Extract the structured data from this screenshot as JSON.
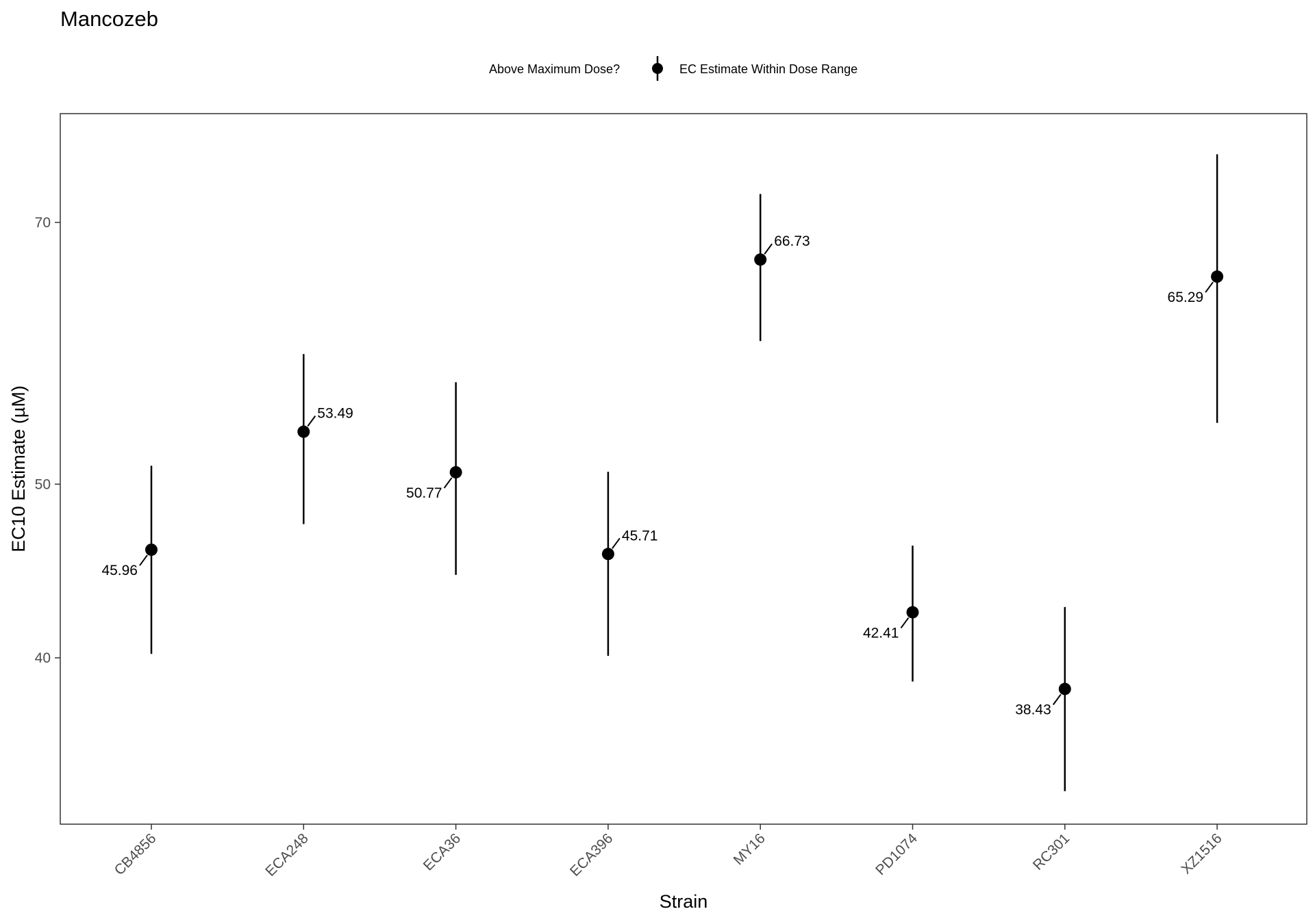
{
  "chart_data": {
    "type": "scatter",
    "title": "Mancozeb",
    "xlabel": "Strain",
    "ylabel": "EC10 Estimate (µM)",
    "categories": [
      "CB4856",
      "ECA248",
      "ECA36",
      "ECA396",
      "MY16",
      "PD1074",
      "RC301",
      "XZ1516"
    ],
    "points": [
      {
        "strain": "CB4856",
        "value": 45.96,
        "lower": 40.2,
        "upper": 51.2,
        "label": "45.96",
        "label_side": "left"
      },
      {
        "strain": "ECA248",
        "value": 53.49,
        "lower": 47.5,
        "upper": 59.1,
        "label": "53.49",
        "label_side": "right"
      },
      {
        "strain": "ECA36",
        "value": 50.77,
        "lower": 44.5,
        "upper": 57.0,
        "label": "50.77",
        "label_side": "left"
      },
      {
        "strain": "ECA396",
        "value": 45.71,
        "lower": 40.1,
        "upper": 50.8,
        "label": "45.71",
        "label_side": "right"
      },
      {
        "strain": "MY16",
        "value": 66.73,
        "lower": 60.1,
        "upper": 72.6,
        "label": "66.73",
        "label_side": "right"
      },
      {
        "strain": "PD1074",
        "value": 42.41,
        "lower": 38.8,
        "upper": 46.2,
        "label": "42.41",
        "label_side": "left"
      },
      {
        "strain": "RC301",
        "value": 38.43,
        "lower": 33.7,
        "upper": 42.7,
        "label": "38.43",
        "label_side": "left"
      },
      {
        "strain": "XZ1516",
        "value": 65.29,
        "lower": 54.1,
        "upper": 76.4,
        "label": "65.29",
        "label_side": "left"
      }
    ],
    "y_scale": "log",
    "yticks": [
      40,
      50,
      70
    ],
    "ylim": [
      32.3,
      80.5
    ],
    "grid": false,
    "legend": {
      "title": "Above Maximum Dose?",
      "entries": [
        "EC Estimate Within Dose Range"
      ],
      "position": "top"
    },
    "colors": {
      "point": "#000000",
      "panel_border": "#333333",
      "tick_text": "#4d4d4d"
    }
  }
}
